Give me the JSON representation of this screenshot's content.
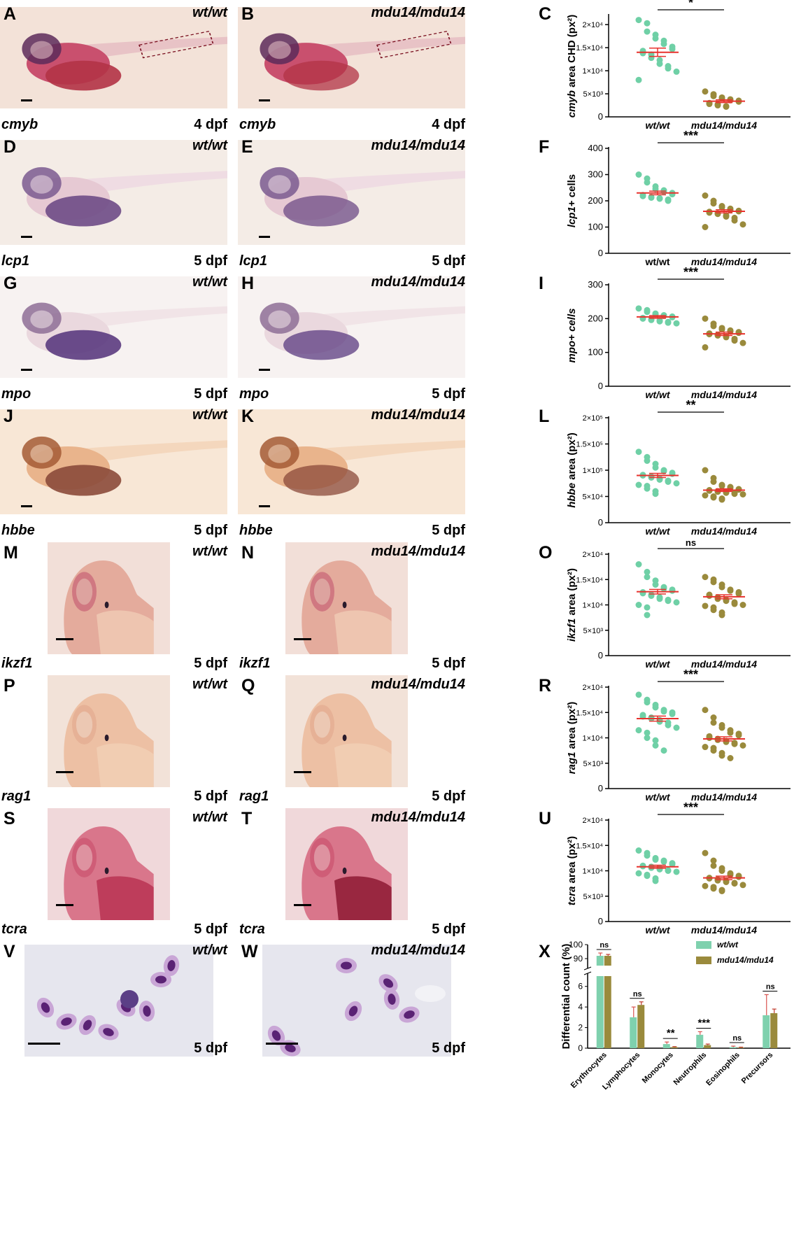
{
  "rows": [
    {
      "left": {
        "letter": "A",
        "genotype": "wt/wt",
        "gene": "cmyb",
        "stage": "4 dpf"
      },
      "right": {
        "letter": "B",
        "genotype": "mdu14/mdu14",
        "gene": "cmyb",
        "stage": "4 dpf"
      },
      "plot": {
        "letter": "C",
        "ylabel_gene": "cmyb",
        "ylabel_rest": " area CHD (px²)",
        "ticks": [
          "0",
          "5×10³",
          "1×10⁴",
          "1.5×10⁴",
          "2×10⁴"
        ],
        "ymax": 22000,
        "tickvals": [
          0,
          5000,
          10000,
          15000,
          20000
        ],
        "sig": "*",
        "xlabels": [
          "wt/wt",
          "mdu14/mdu14"
        ],
        "xitalic": true,
        "wt": [
          21000,
          20300,
          18500,
          17800,
          17000,
          16500,
          15800,
          15200,
          14700,
          14300,
          13800,
          13500,
          12800,
          12300,
          11500,
          11000,
          10500,
          9800,
          8000
        ],
        "mut": [
          5500,
          4900,
          4500,
          4200,
          4000,
          3800,
          3600,
          3500,
          3300,
          3000,
          2800,
          2700,
          2500,
          2300,
          2200
        ],
        "wt_mean": 14000,
        "wt_sem": 900,
        "mut_mean": 3400,
        "mut_sem": 300
      }
    },
    {
      "left": {
        "letter": "D",
        "genotype": "wt/wt",
        "gene": "lcp1",
        "stage": "5 dpf"
      },
      "right": {
        "letter": "E",
        "genotype": "mdu14/mdu14",
        "gene": "lcp1",
        "stage": "5 dpf"
      },
      "plot": {
        "letter": "F",
        "ylabel_gene": "lcp1",
        "ylabel_rest": "+ cells",
        "ticks": [
          "0",
          "100",
          "200",
          "300",
          "400"
        ],
        "ymax": 400,
        "tickvals": [
          0,
          100,
          200,
          300,
          400
        ],
        "sig": "***",
        "xlabels": [
          "wt/wt",
          "mdu14/mdu14"
        ],
        "xitalic": false,
        "wt": [
          300,
          285,
          270,
          255,
          245,
          240,
          235,
          230,
          225,
          222,
          218,
          215,
          212,
          210,
          208,
          205,
          200
        ],
        "mut": [
          220,
          200,
          190,
          180,
          175,
          170,
          165,
          162,
          160,
          158,
          155,
          152,
          150,
          145,
          140,
          135,
          125,
          110,
          100
        ],
        "wt_mean": 230,
        "wt_sem": 7,
        "mut_mean": 160,
        "mut_sem": 6
      }
    },
    {
      "left": {
        "letter": "G",
        "genotype": "wt/wt",
        "gene": "mpo",
        "stage": "5 dpf"
      },
      "right": {
        "letter": "H",
        "genotype": "mdu14/mdu14",
        "gene": "mpo",
        "stage": "5 dpf"
      },
      "plot": {
        "letter": "I",
        "ylabel_gene": "mpo",
        "ylabel_rest": "+ cells",
        "ylabel_all_italic": true,
        "ticks": [
          "0",
          "100",
          "200",
          "300"
        ],
        "ymax": 300,
        "tickvals": [
          0,
          100,
          200,
          300
        ],
        "sig": "***",
        "xlabels": [
          "wt/wt",
          "mdu14/mdu14"
        ],
        "xitalic": true,
        "wt": [
          230,
          225,
          220,
          215,
          212,
          210,
          208,
          206,
          204,
          202,
          200,
          198,
          196,
          194,
          192,
          190,
          188,
          186
        ],
        "mut": [
          200,
          185,
          178,
          172,
          168,
          165,
          162,
          160,
          158,
          156,
          154,
          152,
          150,
          148,
          145,
          140,
          135,
          128,
          115
        ],
        "wt_mean": 205,
        "wt_sem": 4,
        "mut_mean": 155,
        "mut_sem": 5
      }
    },
    {
      "left": {
        "letter": "J",
        "genotype": "wt/wt",
        "gene": "hbbe",
        "stage": "5 dpf"
      },
      "right": {
        "letter": "K",
        "genotype": "mdu14/mdu14",
        "gene": "hbbe",
        "stage": "5 dpf"
      },
      "plot": {
        "letter": "L",
        "ylabel_gene": "hbbe",
        "ylabel_rest": " area (px²)",
        "ticks": [
          "0",
          "5×10⁴",
          "1×10⁵",
          "1.5×10⁵",
          "2×10⁵"
        ],
        "ymax": 200000,
        "tickvals": [
          0,
          50000,
          100000,
          150000,
          200000
        ],
        "sig": "**",
        "xlabels": [
          "wt/wt",
          "mdu14/mdu14"
        ],
        "xitalic": true,
        "wt": [
          135000,
          125000,
          118000,
          112000,
          105000,
          100000,
          98000,
          95000,
          93000,
          91000,
          90000,
          88000,
          86000,
          84000,
          82000,
          80000,
          78000,
          75000,
          72000,
          70000,
          65000,
          60000,
          55000
        ],
        "mut": [
          100000,
          85000,
          78000,
          72000,
          70000,
          68000,
          66000,
          64000,
          63000,
          62000,
          61000,
          60000,
          59000,
          58000,
          57000,
          56000,
          55000,
          54000,
          52000,
          50000,
          48000,
          46000,
          44000
        ],
        "wt_mean": 90000,
        "wt_sem": 4000,
        "mut_mean": 62000,
        "mut_sem": 2500
      }
    },
    {
      "left": {
        "letter": "M",
        "genotype": "wt/wt",
        "gene": "ikzf1",
        "stage": "5 dpf"
      },
      "right": {
        "letter": "N",
        "genotype": "mdu14/mdu14",
        "gene": "ikzf1",
        "stage": "5 dpf"
      },
      "plot": {
        "letter": "O",
        "ylabel_gene": "ikzf1",
        "ylabel_rest": " area (px²)",
        "ticks": [
          "0",
          "5×10³",
          "1×10⁴",
          "1.5×10⁴",
          "2×10⁴"
        ],
        "ymax": 20000,
        "tickvals": [
          0,
          5000,
          10000,
          15000,
          20000
        ],
        "sig": "ns",
        "xlabels": [
          "wt/wt",
          "mdu14/mdu14"
        ],
        "xitalic": true,
        "wt": [
          18000,
          16500,
          15500,
          14800,
          14000,
          13500,
          13200,
          13000,
          12800,
          12500,
          12300,
          12000,
          11800,
          11500,
          11200,
          11000,
          10800,
          10500,
          10000,
          9500,
          8000
        ],
        "mut": [
          15500,
          15000,
          14500,
          14000,
          13500,
          13000,
          12800,
          12500,
          12200,
          12000,
          11800,
          11500,
          11200,
          11000,
          10800,
          10500,
          10200,
          10000,
          9800,
          9500,
          9000,
          8500,
          8000
        ],
        "wt_mean": 12600,
        "wt_sem": 450,
        "mut_mean": 11600,
        "mut_sem": 400
      }
    },
    {
      "left": {
        "letter": "P",
        "genotype": "wt/wt",
        "gene": "rag1",
        "stage": "5 dpf"
      },
      "right": {
        "letter": "Q",
        "genotype": "mdu14/mdu14",
        "gene": "rag1",
        "stage": "5 dpf"
      },
      "plot": {
        "letter": "R",
        "ylabel_gene": "rag1",
        "ylabel_rest": " area (px²)",
        "ticks": [
          "0",
          "5×10³",
          "1×10⁴",
          "1.5×10⁴",
          "2×10⁴"
        ],
        "ymax": 20000,
        "tickvals": [
          0,
          5000,
          10000,
          15000,
          20000
        ],
        "sig": "***",
        "xlabels": [
          "wt/wt",
          "mdu14/mdu14"
        ],
        "xitalic": true,
        "wt": [
          18500,
          17500,
          17000,
          16500,
          16000,
          15500,
          15200,
          15000,
          14700,
          14500,
          14200,
          14000,
          13800,
          13500,
          13200,
          13000,
          12500,
          12000,
          11500,
          11000,
          10000,
          9500,
          8500,
          7500
        ],
        "mut": [
          15500,
          14000,
          13000,
          12500,
          12000,
          11500,
          11000,
          10800,
          10500,
          10300,
          10000,
          9800,
          9600,
          9400,
          9200,
          9000,
          8800,
          8500,
          8200,
          8000,
          7500,
          7000,
          6500,
          6000
        ],
        "wt_mean": 13800,
        "wt_sem": 500,
        "mut_mean": 9800,
        "mut_sem": 400
      }
    },
    {
      "left": {
        "letter": "S",
        "genotype": "wt/wt",
        "gene": "tcra",
        "stage": "5 dpf"
      },
      "right": {
        "letter": "T",
        "genotype": "mdu14/mdu14",
        "gene": "tcra",
        "stage": "5 dpf"
      },
      "plot": {
        "letter": "U",
        "ylabel_gene": "tcra",
        "ylabel_rest": " area (px²)",
        "ticks": [
          "0",
          "5×10³",
          "1×10⁴",
          "1.5×10⁴",
          "2×10⁴"
        ],
        "ymax": 20000,
        "tickvals": [
          0,
          5000,
          10000,
          15000,
          20000
        ],
        "sig": "***",
        "xlabels": [
          "wt/wt",
          "mdu14/mdu14"
        ],
        "xitalic": true,
        "wt": [
          14000,
          13500,
          13000,
          12500,
          12200,
          12000,
          11800,
          11500,
          11300,
          11000,
          10900,
          10800,
          10600,
          10500,
          10300,
          10100,
          10000,
          9800,
          9500,
          9200,
          9000,
          8500,
          8000
        ],
        "mut": [
          13500,
          12000,
          11000,
          10500,
          10000,
          9500,
          9200,
          9000,
          8800,
          8600,
          8500,
          8300,
          8100,
          8000,
          7800,
          7600,
          7500,
          7200,
          7000,
          6800,
          6500,
          6200,
          6000
        ],
        "wt_mean": 10800,
        "wt_sem": 300,
        "mut_mean": 8600,
        "mut_sem": 350
      }
    }
  ],
  "smears": {
    "left": {
      "letter": "V",
      "genotype": "wt/wt",
      "stage": "5 dpf"
    },
    "right": {
      "letter": "W",
      "genotype": "mdu14/mdu14",
      "stage": "5 dpf"
    }
  },
  "chart_data": [
    {
      "type": "bar",
      "letter": "X",
      "title": "",
      "ylabel": "Differential count (%)",
      "categories": [
        "Erythrocytes",
        "Lymphocytes",
        "Monocytes",
        "Neutrophils",
        "Eosinophils",
        "Precursors"
      ],
      "series": [
        {
          "name": "wt/wt",
          "color": "#7fd1ae",
          "values": [
            92,
            3,
            0.4,
            1.3,
            0.1,
            3.2
          ],
          "errors": [
            2,
            1,
            0.2,
            0.3,
            0.1,
            2
          ]
        },
        {
          "name": "mdu14/mdu14",
          "color": "#9a8a3c",
          "values": [
            92,
            4.2,
            0.1,
            0.3,
            0.05,
            3.4
          ],
          "errors": [
            1,
            0.3,
            0.05,
            0.1,
            0.05,
            0.4
          ]
        }
      ],
      "significance": [
        "ns",
        "ns",
        "**",
        "***",
        "ns",
        "ns"
      ],
      "yticks_upper": [
        "90",
        "100"
      ],
      "yticks_lower": [
        "0",
        "2",
        "4",
        "6"
      ],
      "ylim_lower": [
        0,
        7
      ],
      "ylim_upper": [
        85,
        100
      ]
    }
  ],
  "colors": {
    "wt": "#6fd0a6",
    "mut": "#9a8a3c",
    "mean": "#e8322d"
  }
}
